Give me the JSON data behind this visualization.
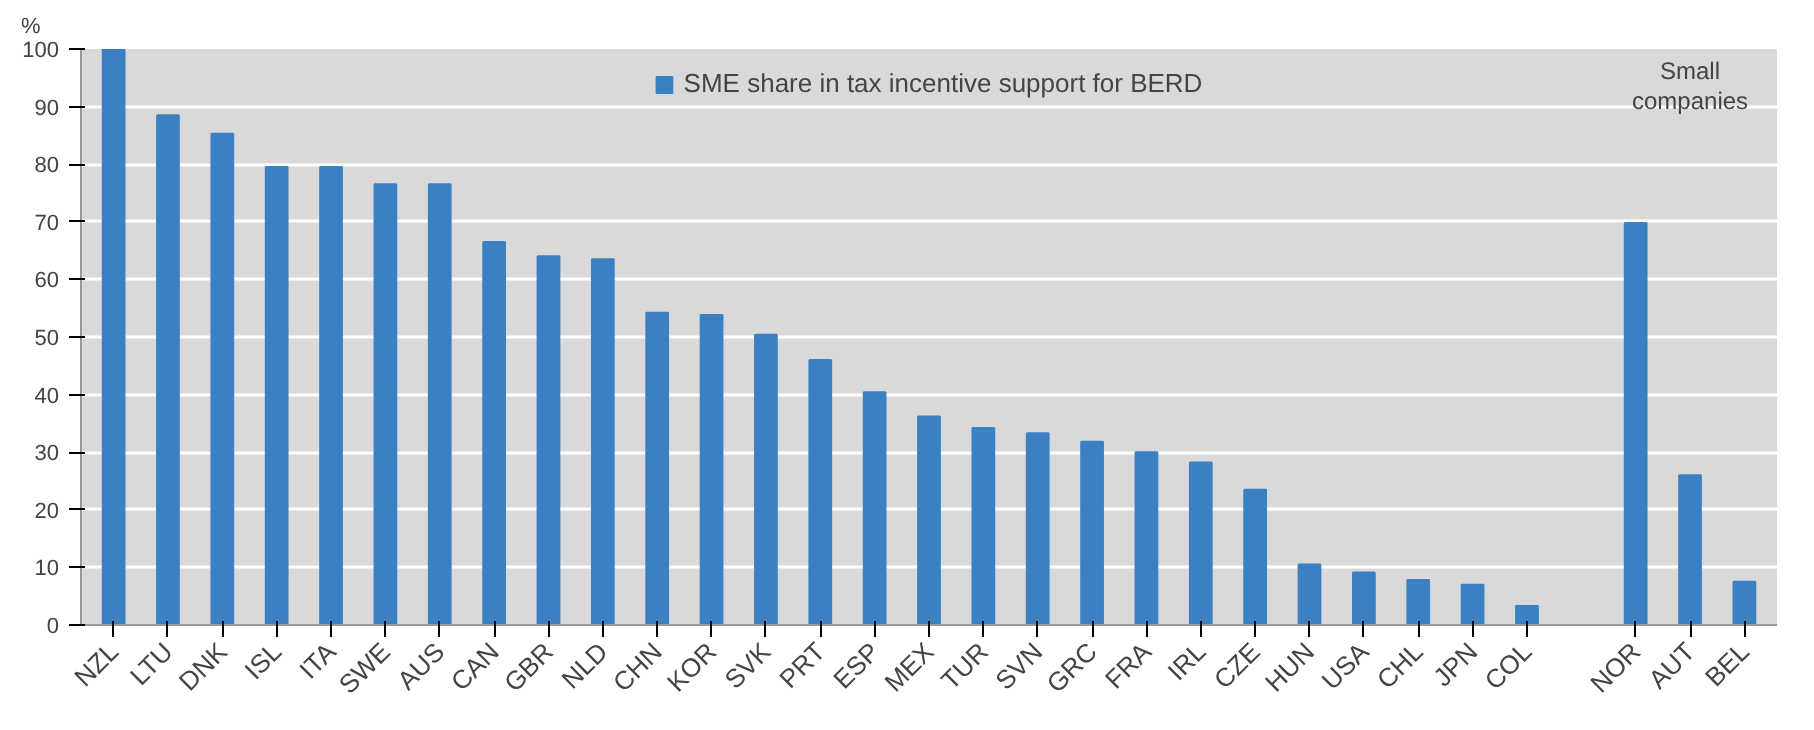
{
  "chart_data": {
    "type": "bar",
    "ylabel": "%",
    "categories": [
      "NZL",
      "LTU",
      "DNK",
      "ISL",
      "ITA",
      "SWE",
      "AUS",
      "CAN",
      "GBR",
      "NLD",
      "CHN",
      "KOR",
      "SVK",
      "PRT",
      "ESP",
      "MEX",
      "TUR",
      "SVN",
      "GRC",
      "FRA",
      "IRL",
      "CZE",
      "HUN",
      "USA",
      "CHL",
      "JPN",
      "COL",
      null,
      "NOR",
      "AUT",
      "BEL"
    ],
    "series": [
      {
        "name": "SME share in tax incentive support for BERD",
        "color": "#3a80c2",
        "values": [
          100,
          88.5,
          85.3,
          79.5,
          79.5,
          76.5,
          76.5,
          66.5,
          64,
          63.5,
          54.2,
          53.8,
          50.4,
          46,
          40.4,
          36.2,
          34.2,
          33.3,
          31.8,
          30,
          28.2,
          23.5,
          10.5,
          9.1,
          7.8,
          7,
          3.3,
          null,
          69.8,
          26,
          7.5
        ]
      }
    ],
    "ylim": [
      0,
      100
    ],
    "yticks": [
      0,
      10,
      20,
      30,
      40,
      50,
      60,
      70,
      80,
      90,
      100
    ],
    "grid": "y",
    "legend": "top",
    "annotations": [
      "Small companies"
    ]
  }
}
